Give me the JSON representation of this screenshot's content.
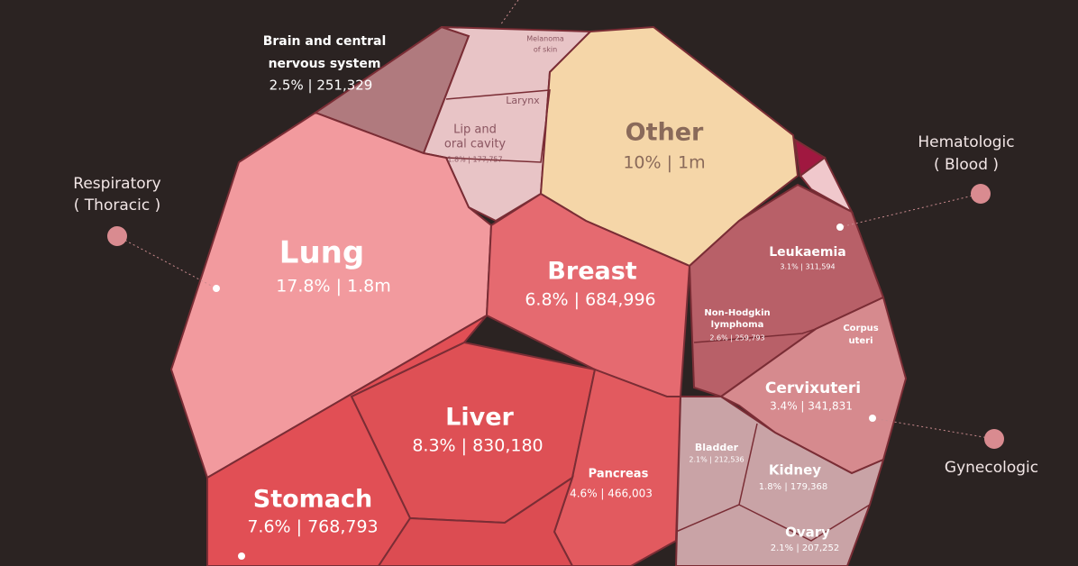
{
  "cells": {
    "brain": {
      "name": [
        "Brain and central",
        "nervous system"
      ],
      "stats": "2.5% | 251,329"
    },
    "melanoma": {
      "name": [
        "Melanoma",
        "of skin"
      ]
    },
    "larynx": {
      "name": "Larynx"
    },
    "lip": {
      "name": [
        "Lip and",
        "oral cavity"
      ],
      "stats": "1.8% | 177,757"
    },
    "other": {
      "name": "Other",
      "stats": "10% | 1m"
    },
    "lung": {
      "name": "Lung",
      "stats": "17.8% | 1.8m"
    },
    "breast": {
      "name": "Breast",
      "stats": "6.8% | 684,996"
    },
    "leukaemia": {
      "name": "Leukaemia",
      "stats": "3.1% | 311,594"
    },
    "nhl": {
      "name": [
        "Non-Hodgkin",
        "lymphoma"
      ],
      "stats": "2.6% | 259,793"
    },
    "corpus": {
      "name": [
        "Corpus",
        "uteri"
      ]
    },
    "cervix": {
      "name": "Cervixuteri",
      "stats": "3.4% | 341,831"
    },
    "liver": {
      "name": "Liver",
      "stats": "8.3% | 830,180"
    },
    "pancreas": {
      "name": "Pancreas",
      "stats": "4.6% | 466,003"
    },
    "bladder": {
      "name": "Bladder",
      "stats": "2.1% | 212,536"
    },
    "kidney": {
      "name": "Kidney",
      "stats": "1.8% | 179,368"
    },
    "ovary": {
      "name": "Ovary",
      "stats": "2.1% | 207,252"
    },
    "stomach": {
      "name": "Stomach",
      "stats": "7.6% | 768,793"
    }
  },
  "callouts": {
    "respiratory": [
      "Respiratory",
      "( Thoracic )"
    ],
    "hematologic": [
      "Hematologic",
      "( Blood )"
    ],
    "gynecologic": [
      "Gynecologic"
    ]
  }
}
